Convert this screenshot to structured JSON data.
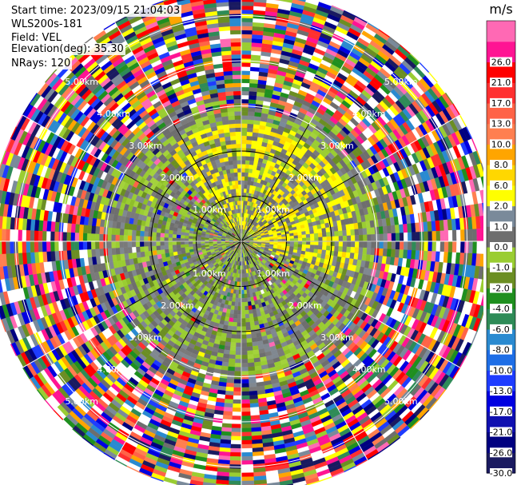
{
  "info": {
    "start_time": "Start time: 2023/09/15 21:04:03",
    "instrument": "WLS200s-181",
    "field": "Field: VEL",
    "elevation": "Elevation(deg): 35.30",
    "nrays": "NRays: 120"
  },
  "chart_data": {
    "type": "heatmap",
    "projection": "polar-ppi",
    "field": "VEL",
    "unit": "m/s",
    "nrays": 120,
    "range_rings_km": [
      1.0,
      2.0,
      3.0,
      4.0,
      5.0
    ],
    "range_ring_labels": [
      "1.00km",
      "2.00km",
      "3.00km",
      "4.00km",
      "5.00km"
    ],
    "max_range_km": 5.6,
    "azimuth_lines_deg": [
      0,
      30,
      60,
      90,
      120,
      150,
      180,
      210,
      240,
      270,
      300,
      330
    ],
    "colorbar": {
      "levels": [
        -30.0,
        -26.0,
        -21.0,
        -17.0,
        -13.0,
        -10.0,
        -8.0,
        -6.0,
        -4.0,
        -2.0,
        -1.0,
        0.0,
        1.0,
        2.0,
        6.0,
        8.0,
        10.0,
        13.0,
        17.0,
        21.0,
        26.0
      ],
      "tick_labels": [
        "-30.0",
        "-26.0",
        "-21.0",
        "-17.0",
        "-13.0",
        "-10.0",
        "-8.0",
        "-6.0",
        "-4.0",
        "-2.0",
        "-1.0",
        "0.0",
        "1.0",
        "2.0",
        "6.0",
        "8.0",
        "10.0",
        "13.0",
        "17.0",
        "21.0",
        "26.0"
      ],
      "colors": [
        "#1a1a60",
        "#000080",
        "#1010b0",
        "#0000e0",
        "#1e3cff",
        "#1e6ee6",
        "#2a8ad0",
        "#2e8b57",
        "#1f8f1f",
        "#6b8e23",
        "#9acd32",
        "#6e6e6e",
        "#7a8a9a",
        "#ffff00",
        "#ffd700",
        "#ffa500",
        "#ff7f50",
        "#ff6347",
        "#ff3030",
        "#ff0000",
        "#ff1493",
        "#ff69b4"
      ]
    },
    "regions": [
      {
        "name": "near-range positive",
        "azimuth_from_deg": -40,
        "azimuth_to_deg": 110,
        "range_from_km": 0.3,
        "range_to_km": 2.6,
        "value_class": "yellow"
      },
      {
        "name": "near-range negative",
        "azimuth_from_deg": 110,
        "azimuth_to_deg": 320,
        "range_from_km": 0.1,
        "range_to_km": 3.0,
        "value_class": "green"
      },
      {
        "name": "far-range noise",
        "range_from_km": 3.0,
        "range_to_km": 5.6,
        "value_class": "noise"
      }
    ]
  }
}
